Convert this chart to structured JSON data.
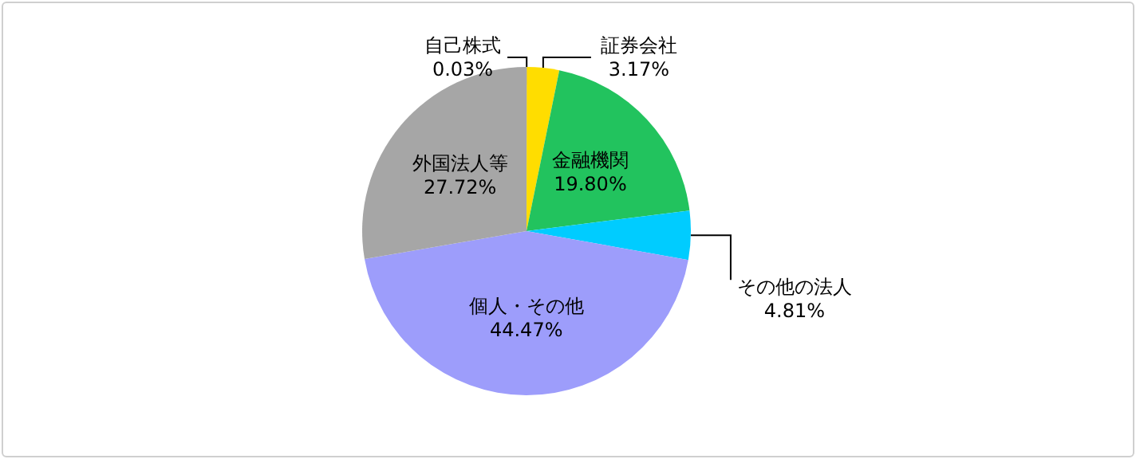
{
  "chart_data": {
    "type": "pie",
    "categories": [
      "自己株式",
      "証券会社",
      "金融機関",
      "その他の法人",
      "個人・その他",
      "外国法人等"
    ],
    "values": [
      0.03,
      3.17,
      19.8,
      4.81,
      44.47,
      27.72
    ],
    "colors": [
      "#333333",
      "#ffdd00",
      "#22c35e",
      "#00ccff",
      "#9d9dfb",
      "#a6a6a6"
    ],
    "value_labels": [
      "0.03%",
      "3.17%",
      "19.80%",
      "4.81%",
      "44.47%",
      "27.72%"
    ],
    "legend": false
  }
}
